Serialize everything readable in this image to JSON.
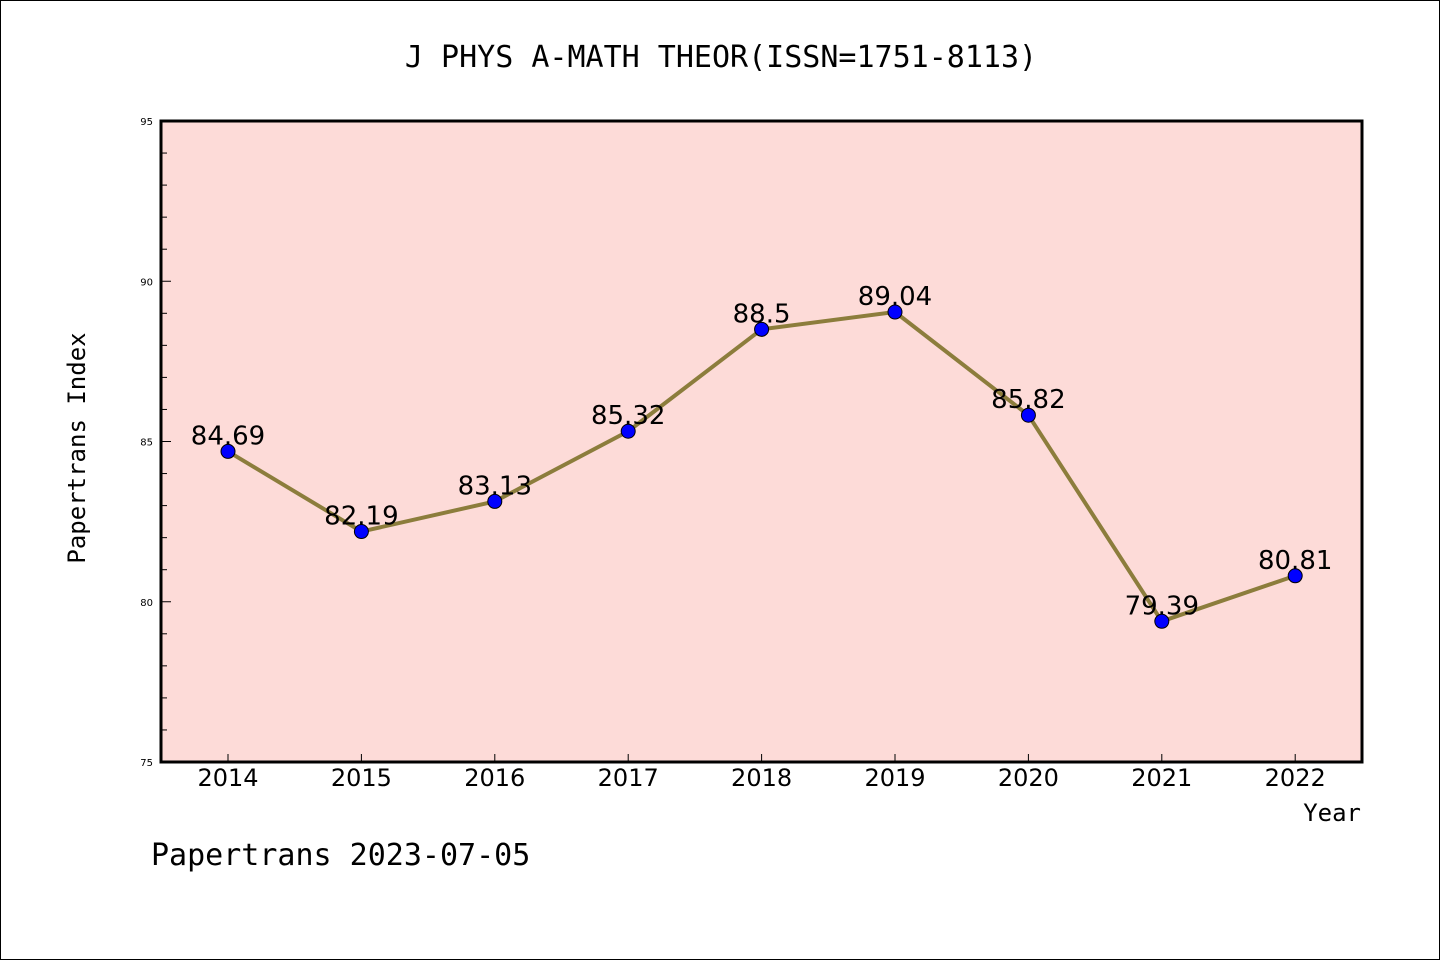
{
  "chart_data": {
    "type": "line",
    "title": "J PHYS A-MATH THEOR(ISSN=1751-8113)",
    "xlabel": "Year",
    "ylabel": "Papertrans Index",
    "categories": [
      "2014",
      "2015",
      "2016",
      "2017",
      "2018",
      "2019",
      "2020",
      "2021",
      "2022"
    ],
    "values": [
      84.69,
      82.19,
      83.13,
      85.32,
      88.5,
      89.04,
      85.82,
      79.39,
      80.81
    ],
    "data_labels": [
      "84.69",
      "82.19",
      "83.13",
      "85.32",
      "88.5",
      "89.04",
      "85.82",
      "79.39",
      "80.81"
    ],
    "ylim": [
      75,
      95
    ],
    "yticks": [
      75,
      80,
      85,
      90,
      95
    ],
    "ytick_labels": [
      "75",
      "80",
      "85",
      "90",
      "95"
    ],
    "grid": false,
    "line_color": "#8c7d3c",
    "marker_color": "#0000ff",
    "plot_background": "#fddbd8"
  },
  "footer": {
    "text": "Papertrans 2023-07-05"
  }
}
